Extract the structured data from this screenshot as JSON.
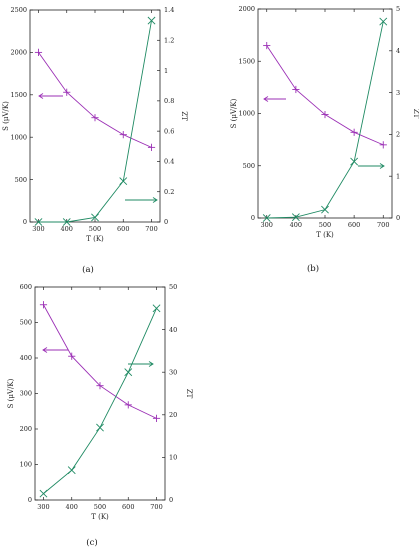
{
  "colors": {
    "seebeck": "#9b2fb5",
    "zt": "#1f8a63",
    "axis": "#222222"
  },
  "chart_data": [
    {
      "type": "line",
      "panel": "(a)",
      "xlabel": "T (K)",
      "ylabel": "S (μV/K)",
      "y2label": "ZT",
      "x": [
        300,
        400,
        500,
        600,
        700
      ],
      "xlim": [
        270,
        730
      ],
      "xticks": [
        "300",
        "400",
        "500",
        "600",
        "700"
      ],
      "ylim": [
        0,
        2500
      ],
      "yticks": [
        "0",
        "500",
        "1000",
        "1500",
        "2000",
        "2500"
      ],
      "y2lim": [
        0,
        1.4
      ],
      "y2ticks": [
        "0",
        "0.2",
        "0.4",
        "0.6",
        "0.8",
        "1",
        "1.2",
        "1.4"
      ],
      "series": [
        {
          "axis": "left",
          "marker": "plus",
          "values": [
            2000,
            1530,
            1230,
            1030,
            880
          ]
        },
        {
          "axis": "right",
          "marker": "cross",
          "values": [
            0.0,
            0.0,
            0.03,
            0.27,
            1.33
          ]
        }
      ]
    },
    {
      "type": "line",
      "panel": "(b)",
      "xlabel": "T (K)",
      "ylabel": "S (μV/K)",
      "y2label": "ZT",
      "x": [
        300,
        400,
        500,
        600,
        700
      ],
      "xlim": [
        270,
        730
      ],
      "xticks": [
        "300",
        "400",
        "500",
        "600",
        "700"
      ],
      "ylim": [
        0,
        2000
      ],
      "yticks": [
        "0",
        "500",
        "1000",
        "1500",
        "2000"
      ],
      "y2lim": [
        0,
        5
      ],
      "y2ticks": [
        "0",
        "1",
        "2",
        "3",
        "4",
        "5"
      ],
      "series": [
        {
          "axis": "left",
          "marker": "plus",
          "values": [
            1650,
            1230,
            990,
            820,
            700
          ]
        },
        {
          "axis": "right",
          "marker": "cross",
          "values": [
            0.0,
            0.02,
            0.2,
            1.35,
            4.7
          ]
        }
      ]
    },
    {
      "type": "line",
      "panel": "(c)",
      "xlabel": "T (K)",
      "ylabel": "S (μV/K)",
      "y2label": "ZT",
      "x": [
        300,
        400,
        500,
        600,
        700
      ],
      "xlim": [
        270,
        730
      ],
      "xticks": [
        "300",
        "400",
        "500",
        "600",
        "700"
      ],
      "ylim": [
        0,
        600
      ],
      "yticks": [
        "0",
        "100",
        "200",
        "300",
        "400",
        "500",
        "600"
      ],
      "y2lim": [
        0,
        50
      ],
      "y2ticks": [
        "0",
        "10",
        "20",
        "30",
        "40",
        "50"
      ],
      "series": [
        {
          "axis": "left",
          "marker": "plus",
          "values": [
            550,
            405,
            322,
            268,
            230
          ]
        },
        {
          "axis": "right",
          "marker": "cross",
          "values": [
            1.5,
            7,
            17,
            30,
            45
          ]
        }
      ]
    }
  ]
}
